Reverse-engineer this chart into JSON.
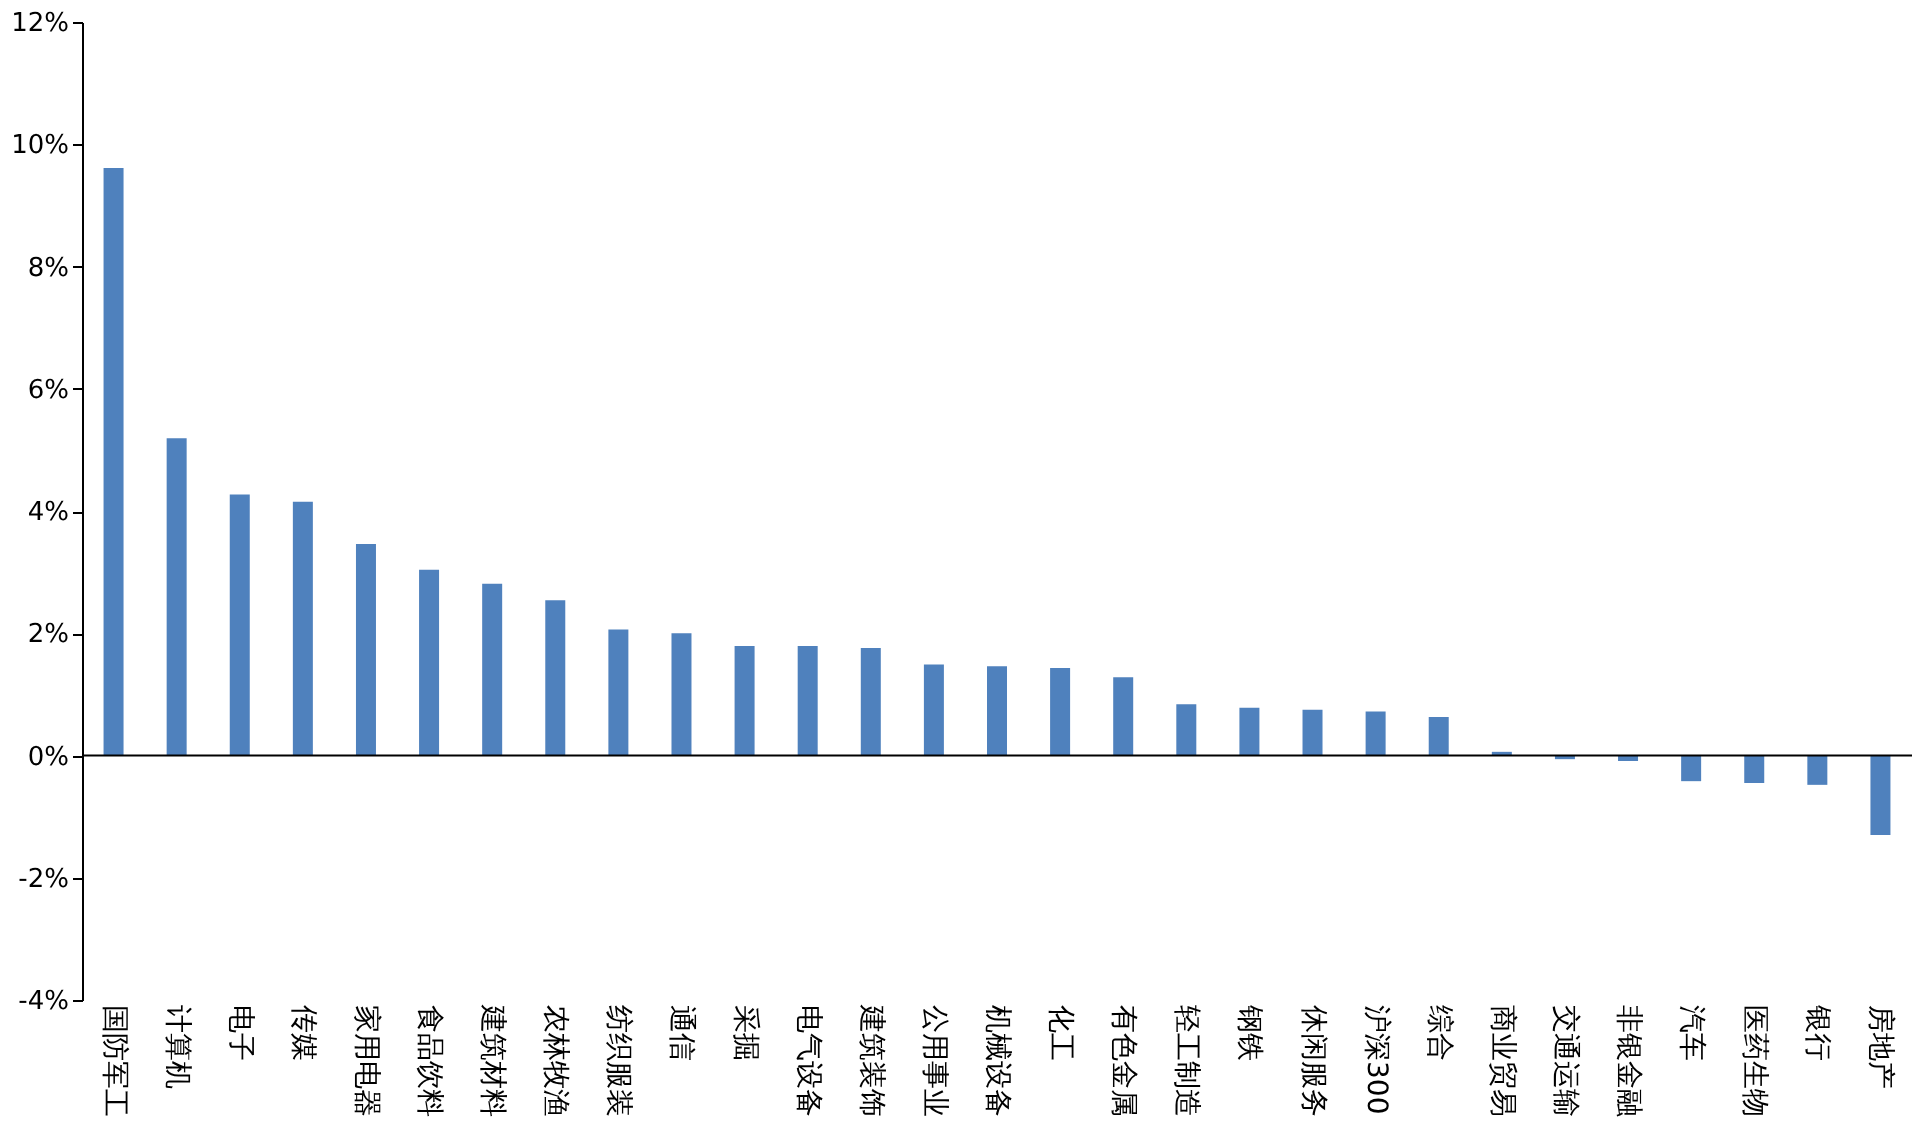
{
  "chart_data": {
    "type": "bar",
    "categories": [
      "国防军工",
      "计算机",
      "电子",
      "传媒",
      "家用电器",
      "食品饮料",
      "建筑材料",
      "农林牧渔",
      "纺织服装",
      "通信",
      "采掘",
      "电气设备",
      "建筑装饰",
      "公用事业",
      "机械设备",
      "化工",
      "有色金属",
      "轻工制造",
      "钢铁",
      "休闲服务",
      "沪深300",
      "综合",
      "商业贸易",
      "交通运输",
      "非银金融",
      "汽车",
      "医药生物",
      "银行",
      "房地产"
    ],
    "values": [
      9.61,
      5.19,
      4.27,
      4.15,
      3.46,
      3.04,
      2.81,
      2.54,
      2.06,
      2.0,
      1.79,
      1.79,
      1.76,
      1.49,
      1.46,
      1.43,
      1.28,
      0.84,
      0.78,
      0.75,
      0.72,
      0.63,
      0.06,
      -0.06,
      -0.09,
      -0.42,
      -0.45,
      -0.48,
      -1.3
    ],
    "color": "#4f81bd",
    "ylim": [
      -4,
      12
    ],
    "yticks": [
      {
        "value": -4,
        "label": "-4%"
      },
      {
        "value": -2,
        "label": "-2%"
      },
      {
        "value": 0,
        "label": "0%"
      },
      {
        "value": 2,
        "label": "2%"
      },
      {
        "value": 4,
        "label": "4%"
      },
      {
        "value": 6,
        "label": "6%"
      },
      {
        "value": 8,
        "label": "8%"
      },
      {
        "value": 10,
        "label": "10%"
      },
      {
        "value": 12,
        "label": "12%"
      }
    ],
    "ref_lines": [
      {
        "axis": "y",
        "value": 0,
        "color": "#000000"
      }
    ],
    "grid": false
  }
}
